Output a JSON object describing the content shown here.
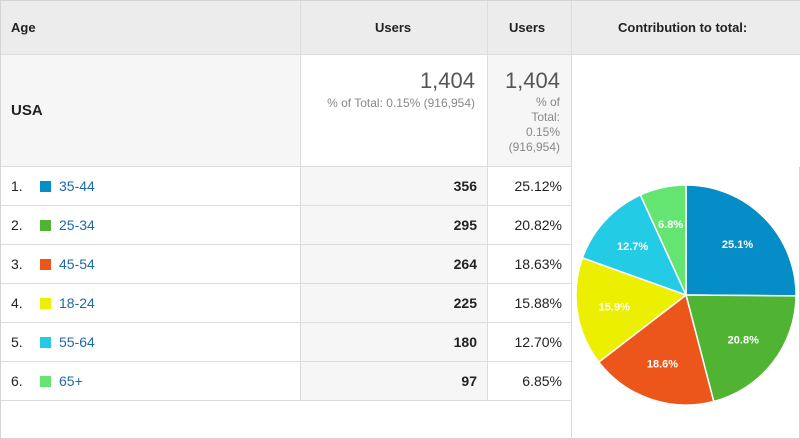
{
  "headers": {
    "age": "Age",
    "users": "Users",
    "users2": "Users",
    "contribution": "Contribution to total:"
  },
  "summary": {
    "label": "USA",
    "users_total": "1,404",
    "users_total_sub": "% of Total: 0.15% (916,954)",
    "users2_total": "1,404",
    "users2_sub_lines": [
      "% of",
      "Total:",
      "0.15%",
      "(916,954)"
    ]
  },
  "rows": [
    {
      "index": "1.",
      "label": "35-44",
      "users": "356",
      "pct": "25.12%",
      "color": "#058dc7"
    },
    {
      "index": "2.",
      "label": "25-34",
      "users": "295",
      "pct": "20.82%",
      "color": "#50b432"
    },
    {
      "index": "3.",
      "label": "45-54",
      "users": "264",
      "pct": "18.63%",
      "color": "#ed561b"
    },
    {
      "index": "4.",
      "label": "18-24",
      "users": "225",
      "pct": "15.88%",
      "color": "#edef00"
    },
    {
      "index": "5.",
      "label": "55-64",
      "users": "180",
      "pct": "12.70%",
      "color": "#24cbe5"
    },
    {
      "index": "6.",
      "label": "65+",
      "users": "97",
      "pct": "6.85%",
      "color": "#64e572"
    }
  ],
  "chart_data": {
    "type": "pie",
    "categories": [
      "35-44",
      "25-34",
      "45-54",
      "18-24",
      "55-64",
      "65+"
    ],
    "values": [
      25.1,
      20.8,
      18.6,
      15.9,
      12.7,
      6.8
    ],
    "labels": [
      "25.1%",
      "20.8%",
      "18.6%",
      "15.9%",
      "12.7%",
      "6.8%"
    ],
    "colors": [
      "#058dc7",
      "#50b432",
      "#ed561b",
      "#edef00",
      "#24cbe5",
      "#64e572"
    ]
  }
}
